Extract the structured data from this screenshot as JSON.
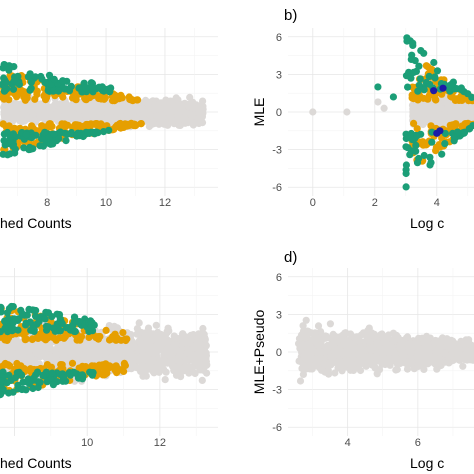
{
  "colors": {
    "grey": "#dcd9d7",
    "orange": "#e69f00",
    "green": "#1b9e77",
    "blue": "#1c1ca8"
  },
  "chart_data": [
    {
      "panel": "a",
      "type": "scatter",
      "panel_label": "",
      "xlabel": "hed Counts",
      "ylabel": "",
      "x_ticks": [
        "8",
        "10",
        "12"
      ],
      "y_ticks": [],
      "xlim": [
        6.4,
        13.8
      ],
      "ylim": [
        -6.7,
        6.7
      ],
      "grid": true,
      "bands": [
        {
          "color": "grey",
          "x": [
            6.5,
            13.3
          ],
          "y_upper": 0.9,
          "y_lower": -0.9,
          "density": 1.0
        },
        {
          "color": "orange",
          "x": [
            6.5,
            11.2
          ],
          "y_upper": [
            1.0,
            3.2
          ],
          "y_lower": [
            -1.0,
            -3.0
          ]
        },
        {
          "color": "green",
          "x": [
            6.5,
            10.2
          ],
          "y_upper": [
            2.0,
            3.8
          ],
          "y_lower": [
            -1.4,
            -3.5
          ]
        }
      ]
    },
    {
      "panel": "b",
      "type": "scatter",
      "panel_label": "b)",
      "xlabel": "Log c",
      "ylabel": "MLE",
      "x_ticks": [
        "0",
        "2",
        "4"
      ],
      "y_ticks": [
        "6",
        "3",
        "0",
        "-3",
        "-6"
      ],
      "xlim": [
        -0.8,
        5.2
      ],
      "ylim": [
        -6.7,
        6.7
      ],
      "grid": true,
      "isolated_points": [
        {
          "x": 0.0,
          "y": 0.0,
          "color": "grey"
        },
        {
          "x": 1.1,
          "y": 0.0,
          "color": "grey"
        },
        {
          "x": 2.3,
          "y": 0.3,
          "color": "grey"
        },
        {
          "x": 2.1,
          "y": 0.8,
          "color": "grey"
        },
        {
          "x": 2.1,
          "y": 2.0,
          "color": "green"
        },
        {
          "x": 2.6,
          "y": 1.2,
          "color": "green"
        },
        {
          "x": 3.9,
          "y": 1.7,
          "color": "blue"
        },
        {
          "x": 4.0,
          "y": -1.7,
          "color": "blue"
        },
        {
          "x": 4.1,
          "y": -1.5,
          "color": "blue"
        },
        {
          "x": 4.2,
          "y": 1.9,
          "color": "blue"
        }
      ],
      "bands": [
        {
          "color": "grey",
          "x": [
            3.2,
            5.2
          ],
          "y_upper": 1.0,
          "y_lower": -1.0
        },
        {
          "color": "orange",
          "x": [
            3.2,
            5.2
          ],
          "y_upper": [
            1.0,
            4.5
          ],
          "y_lower": [
            -1.0,
            -4.5
          ]
        },
        {
          "color": "green",
          "x": [
            3.0,
            5.2
          ],
          "y_upper": [
            1.0,
            6.0
          ],
          "y_lower": [
            -1.0,
            -6.0
          ]
        }
      ]
    },
    {
      "panel": "c",
      "type": "scatter",
      "panel_label": "",
      "xlabel": "hed Counts",
      "ylabel": "",
      "x_ticks": [
        "10",
        "12"
      ],
      "y_ticks": [],
      "xlim": [
        7.6,
        13.6
      ],
      "ylim": [
        -6.7,
        6.7
      ],
      "grid": true,
      "bands": [
        {
          "color": "grey",
          "x": [
            7.6,
            13.3
          ],
          "y_upper": 1.8,
          "y_lower": -1.8
        },
        {
          "color": "orange",
          "x": [
            7.6,
            11.1
          ],
          "y_upper": [
            1.5,
            3.5
          ],
          "y_lower": [
            -1.5,
            -3.2
          ]
        },
        {
          "color": "green",
          "x": [
            7.6,
            10.2
          ],
          "y_upper": [
            2.5,
            3.8
          ],
          "y_lower": [
            -2.0,
            -3.4
          ]
        }
      ]
    },
    {
      "panel": "d",
      "type": "scatter",
      "panel_label": "d)",
      "xlabel": "Log c",
      "ylabel": "MLE+Pseudo",
      "x_ticks": [
        "4",
        "6"
      ],
      "y_ticks": [
        "6",
        "3",
        "0",
        "-3",
        "-6"
      ],
      "xlim": [
        2.3,
        7.6
      ],
      "ylim": [
        -6.7,
        6.7
      ],
      "grid": true,
      "bands": [
        {
          "color": "grey",
          "x": [
            2.6,
            7.6
          ],
          "y_upper": [
            0.8,
            2.0
          ],
          "y_lower": [
            -0.8,
            -2.0
          ]
        }
      ]
    }
  ]
}
